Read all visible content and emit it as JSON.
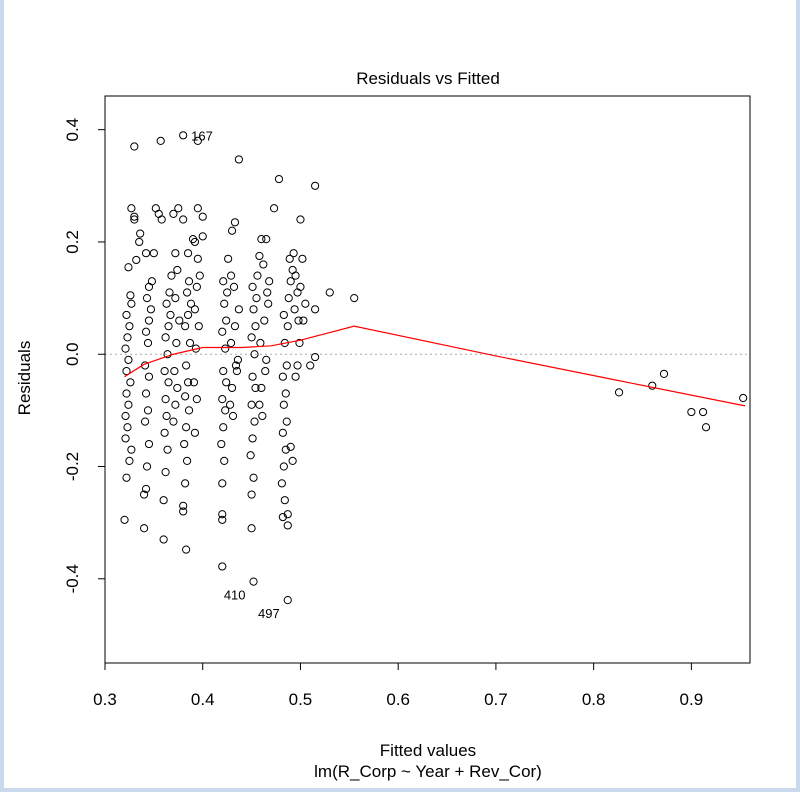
{
  "chart_data": {
    "type": "scatter",
    "title": "Residuals vs Fitted",
    "xlabel": "Fitted values",
    "subtitle": "lm(R_Corp ~ Year + Rev_Cor)",
    "ylabel": "Residuals",
    "xlim": [
      0.3,
      0.96
    ],
    "ylim": [
      -0.55,
      0.46
    ],
    "x_ticks": [
      "0.3",
      "0.4",
      "0.5",
      "0.6",
      "0.7",
      "0.8",
      "0.9"
    ],
    "y_ticks": [
      "-0.4",
      "-0.2",
      "0.0",
      "0.2",
      "0.4"
    ],
    "reference_line": {
      "y": 0,
      "style": "dotted",
      "color": "#aaaaaa"
    },
    "point_color": "#000000",
    "smooth_color": "#ff0000",
    "labeled_points": [
      {
        "label": "167",
        "x": 0.38,
        "y": 0.39
      },
      {
        "label": "410",
        "x": 0.452,
        "y": -0.405
      },
      {
        "label": "497",
        "x": 0.487,
        "y": -0.438
      }
    ],
    "smooth": [
      {
        "x": 0.32,
        "y": -0.04
      },
      {
        "x": 0.34,
        "y": -0.018
      },
      {
        "x": 0.37,
        "y": 0.0
      },
      {
        "x": 0.4,
        "y": 0.012
      },
      {
        "x": 0.44,
        "y": 0.012
      },
      {
        "x": 0.47,
        "y": 0.015
      },
      {
        "x": 0.5,
        "y": 0.025
      },
      {
        "x": 0.555,
        "y": 0.05
      },
      {
        "x": 0.7,
        "y": -0.003
      },
      {
        "x": 0.82,
        "y": -0.045
      },
      {
        "x": 0.955,
        "y": -0.092
      }
    ],
    "points": [
      [
        0.33,
        0.37
      ],
      [
        0.357,
        0.38
      ],
      [
        0.38,
        0.39
      ],
      [
        0.395,
        0.38
      ],
      [
        0.437,
        0.347
      ],
      [
        0.478,
        0.312
      ],
      [
        0.515,
        0.3
      ],
      [
        0.473,
        0.26
      ],
      [
        0.53,
        0.11
      ],
      [
        0.555,
        0.1
      ],
      [
        0.515,
        0.08
      ],
      [
        0.515,
        -0.005
      ],
      [
        0.51,
        -0.02
      ],
      [
        0.826,
        -0.068
      ],
      [
        0.86,
        -0.056
      ],
      [
        0.872,
        -0.035
      ],
      [
        0.9,
        -0.103
      ],
      [
        0.912,
        -0.103
      ],
      [
        0.915,
        -0.13
      ],
      [
        0.953,
        -0.078
      ],
      [
        0.42,
        -0.378
      ],
      [
        0.452,
        -0.405
      ],
      [
        0.487,
        -0.438
      ],
      [
        0.32,
        -0.295
      ],
      [
        0.34,
        -0.31
      ],
      [
        0.36,
        -0.33
      ],
      [
        0.383,
        -0.348
      ],
      [
        0.42,
        -0.285
      ],
      [
        0.42,
        -0.295
      ],
      [
        0.45,
        -0.31
      ],
      [
        0.487,
        -0.305
      ],
      [
        0.38,
        -0.27
      ],
      [
        0.38,
        -0.28
      ],
      [
        0.487,
        -0.285
      ],
      [
        0.322,
        -0.22
      ],
      [
        0.325,
        -0.19
      ],
      [
        0.327,
        -0.17
      ],
      [
        0.321,
        -0.15
      ],
      [
        0.323,
        -0.13
      ],
      [
        0.321,
        -0.11
      ],
      [
        0.324,
        -0.09
      ],
      [
        0.322,
        -0.07
      ],
      [
        0.326,
        -0.05
      ],
      [
        0.322,
        -0.03
      ],
      [
        0.324,
        -0.01
      ],
      [
        0.321,
        0.01
      ],
      [
        0.323,
        0.03
      ],
      [
        0.325,
        0.05
      ],
      [
        0.322,
        0.07
      ],
      [
        0.327,
        0.09
      ],
      [
        0.326,
        0.105
      ],
      [
        0.324,
        0.155
      ],
      [
        0.332,
        0.168
      ],
      [
        0.33,
        0.24
      ],
      [
        0.327,
        0.26
      ],
      [
        0.336,
        0.215
      ],
      [
        0.342,
        0.18
      ],
      [
        0.35,
        0.18
      ],
      [
        0.335,
        0.2
      ],
      [
        0.33,
        0.245
      ],
      [
        0.342,
        -0.24
      ],
      [
        0.343,
        -0.2
      ],
      [
        0.345,
        -0.16
      ],
      [
        0.341,
        -0.12
      ],
      [
        0.344,
        -0.1
      ],
      [
        0.342,
        -0.07
      ],
      [
        0.345,
        -0.04
      ],
      [
        0.341,
        -0.02
      ],
      [
        0.344,
        0.02
      ],
      [
        0.342,
        0.04
      ],
      [
        0.345,
        0.06
      ],
      [
        0.347,
        0.08
      ],
      [
        0.343,
        0.1
      ],
      [
        0.345,
        0.12
      ],
      [
        0.348,
        0.13
      ],
      [
        0.352,
        0.26
      ],
      [
        0.355,
        0.25
      ],
      [
        0.358,
        0.24
      ],
      [
        0.34,
        -0.25
      ],
      [
        0.36,
        -0.26
      ],
      [
        0.362,
        -0.21
      ],
      [
        0.364,
        -0.17
      ],
      [
        0.361,
        -0.14
      ],
      [
        0.363,
        -0.11
      ],
      [
        0.362,
        -0.08
      ],
      [
        0.365,
        -0.05
      ],
      [
        0.361,
        -0.03
      ],
      [
        0.364,
        0.0
      ],
      [
        0.362,
        0.03
      ],
      [
        0.365,
        0.05
      ],
      [
        0.367,
        0.07
      ],
      [
        0.363,
        0.09
      ],
      [
        0.366,
        0.11
      ],
      [
        0.368,
        0.14
      ],
      [
        0.372,
        0.18
      ],
      [
        0.37,
        0.25
      ],
      [
        0.375,
        0.26
      ],
      [
        0.38,
        0.24
      ],
      [
        0.385,
        0.18
      ],
      [
        0.37,
        -0.12
      ],
      [
        0.372,
        -0.09
      ],
      [
        0.374,
        -0.06
      ],
      [
        0.371,
        -0.03
      ],
      [
        0.373,
        0.02
      ],
      [
        0.376,
        0.06
      ],
      [
        0.372,
        0.1
      ],
      [
        0.374,
        0.15
      ],
      [
        0.382,
        -0.23
      ],
      [
        0.384,
        -0.19
      ],
      [
        0.381,
        -0.16
      ],
      [
        0.383,
        -0.13
      ],
      [
        0.386,
        -0.1
      ],
      [
        0.382,
        -0.075
      ],
      [
        0.385,
        -0.05
      ],
      [
        0.383,
        -0.02
      ],
      [
        0.387,
        0.02
      ],
      [
        0.382,
        0.05
      ],
      [
        0.385,
        0.07
      ],
      [
        0.388,
        0.09
      ],
      [
        0.384,
        0.11
      ],
      [
        0.386,
        0.13
      ],
      [
        0.39,
        0.205
      ],
      [
        0.392,
        0.2
      ],
      [
        0.395,
        0.26
      ],
      [
        0.4,
        0.245
      ],
      [
        0.4,
        0.21
      ],
      [
        0.395,
        0.17
      ],
      [
        0.392,
        -0.14
      ],
      [
        0.394,
        -0.08
      ],
      [
        0.391,
        -0.05
      ],
      [
        0.393,
        0.01
      ],
      [
        0.396,
        0.05
      ],
      [
        0.392,
        0.08
      ],
      [
        0.394,
        0.12
      ],
      [
        0.397,
        0.14
      ],
      [
        0.42,
        -0.23
      ],
      [
        0.422,
        -0.19
      ],
      [
        0.419,
        -0.16
      ],
      [
        0.421,
        -0.13
      ],
      [
        0.423,
        -0.1
      ],
      [
        0.42,
        -0.08
      ],
      [
        0.424,
        -0.05
      ],
      [
        0.421,
        -0.03
      ],
      [
        0.423,
        0.01
      ],
      [
        0.42,
        0.04
      ],
      [
        0.424,
        0.06
      ],
      [
        0.422,
        0.09
      ],
      [
        0.425,
        0.11
      ],
      [
        0.421,
        0.13
      ],
      [
        0.426,
        0.17
      ],
      [
        0.43,
        0.22
      ],
      [
        0.433,
        0.235
      ],
      [
        0.429,
        0.14
      ],
      [
        0.432,
        0.12
      ],
      [
        0.43,
        -0.06
      ],
      [
        0.428,
        -0.09
      ],
      [
        0.431,
        -0.11
      ],
      [
        0.434,
        -0.02
      ],
      [
        0.429,
        0.02
      ],
      [
        0.433,
        0.05
      ],
      [
        0.437,
        0.08
      ],
      [
        0.435,
        -0.03
      ],
      [
        0.436,
        -0.01
      ],
      [
        0.45,
        -0.25
      ],
      [
        0.452,
        -0.22
      ],
      [
        0.449,
        -0.18
      ],
      [
        0.451,
        -0.15
      ],
      [
        0.453,
        -0.12
      ],
      [
        0.45,
        -0.09
      ],
      [
        0.454,
        -0.06
      ],
      [
        0.451,
        -0.04
      ],
      [
        0.453,
        0.0
      ],
      [
        0.45,
        0.03
      ],
      [
        0.454,
        0.05
      ],
      [
        0.452,
        0.08
      ],
      [
        0.455,
        0.1
      ],
      [
        0.451,
        0.12
      ],
      [
        0.456,
        0.14
      ],
      [
        0.46,
        0.205
      ],
      [
        0.465,
        0.205
      ],
      [
        0.458,
        0.175
      ],
      [
        0.462,
        0.16
      ],
      [
        0.46,
        -0.06
      ],
      [
        0.458,
        -0.09
      ],
      [
        0.461,
        -0.11
      ],
      [
        0.464,
        -0.03
      ],
      [
        0.459,
        0.02
      ],
      [
        0.463,
        0.06
      ],
      [
        0.467,
        0.09
      ],
      [
        0.465,
        -0.01
      ],
      [
        0.468,
        0.13
      ],
      [
        0.466,
        0.11
      ],
      [
        0.482,
        -0.29
      ],
      [
        0.484,
        -0.26
      ],
      [
        0.481,
        -0.23
      ],
      [
        0.483,
        -0.2
      ],
      [
        0.485,
        -0.17
      ],
      [
        0.482,
        -0.14
      ],
      [
        0.486,
        -0.12
      ],
      [
        0.483,
        -0.09
      ],
      [
        0.485,
        -0.07
      ],
      [
        0.482,
        -0.04
      ],
      [
        0.486,
        -0.02
      ],
      [
        0.484,
        0.02
      ],
      [
        0.487,
        0.05
      ],
      [
        0.483,
        0.07
      ],
      [
        0.488,
        0.1
      ],
      [
        0.49,
        0.13
      ],
      [
        0.492,
        0.15
      ],
      [
        0.489,
        0.17
      ],
      [
        0.493,
        0.18
      ],
      [
        0.495,
        0.14
      ],
      [
        0.497,
        0.11
      ],
      [
        0.494,
        0.08
      ],
      [
        0.498,
        0.06
      ],
      [
        0.49,
        -0.165
      ],
      [
        0.492,
        -0.19
      ],
      [
        0.5,
        0.24
      ],
      [
        0.502,
        0.17
      ],
      [
        0.5,
        0.12
      ],
      [
        0.505,
        0.09
      ],
      [
        0.503,
        0.06
      ],
      [
        0.495,
        -0.04
      ],
      [
        0.497,
        -0.02
      ],
      [
        0.499,
        0.02
      ]
    ]
  }
}
